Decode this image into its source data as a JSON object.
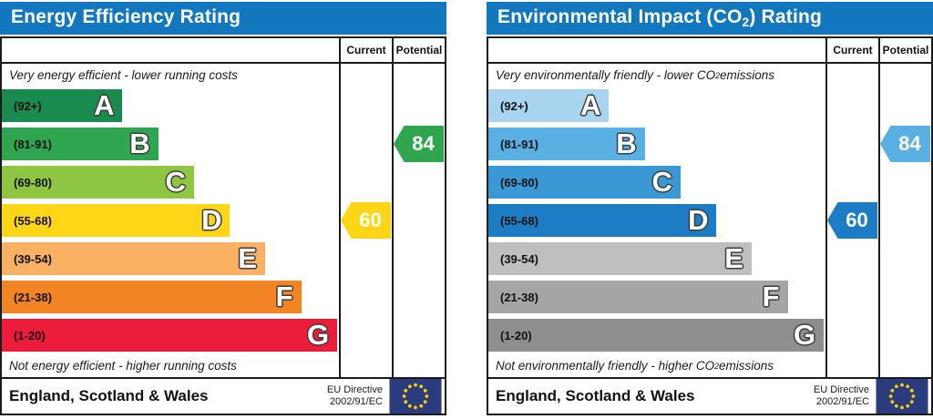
{
  "chart_data": [
    {
      "type": "bar",
      "title_parts": {
        "prefix": "Energy Efficiency Rating",
        "sub": "",
        "suffix": ""
      },
      "header_color": "#1277bd",
      "columns": {
        "current": "Current",
        "potential": "Potential"
      },
      "top_caption_parts": {
        "prefix": "Very energy efficient - lower running costs",
        "sub": "",
        "suffix": ""
      },
      "bottom_caption_parts": {
        "prefix": "Not energy efficient - higher running costs",
        "sub": "",
        "suffix": ""
      },
      "bands": [
        {
          "letter": "A",
          "range": "(92+)",
          "color": "#1b8a4e",
          "width_pct": 35.8
        },
        {
          "letter": "B",
          "range": "(81-91)",
          "color": "#2ea54e",
          "width_pct": 46.4
        },
        {
          "letter": "C",
          "range": "(69-80)",
          "color": "#8ec641",
          "width_pct": 57.0
        },
        {
          "letter": "D",
          "range": "(55-68)",
          "color": "#fed616",
          "width_pct": 67.7
        },
        {
          "letter": "E",
          "range": "(39-54)",
          "color": "#fab164",
          "width_pct": 78.1
        },
        {
          "letter": "F",
          "range": "(21-38)",
          "color": "#f38423",
          "width_pct": 88.8
        },
        {
          "letter": "G",
          "range": "(1-20)",
          "color": "#ec1c3b",
          "width_pct": 99.5
        }
      ],
      "current": {
        "value": 60,
        "band": "D",
        "band_index": 3,
        "color": "#fed616"
      },
      "potential": {
        "value": 84,
        "band": "B",
        "band_index": 1,
        "color": "#2ea54e"
      },
      "footer": {
        "region": "England, Scotland & Wales",
        "directive_line1": "EU Directive",
        "directive_line2": "2002/91/EC"
      }
    },
    {
      "type": "bar",
      "title_parts": {
        "prefix": "Environmental Impact (CO",
        "sub": "2",
        "suffix": ") Rating"
      },
      "header_color": "#1277bd",
      "columns": {
        "current": "Current",
        "potential": "Potential"
      },
      "top_caption_parts": {
        "prefix": "Very environmentally friendly - lower CO",
        "sub": "2",
        "suffix": " emissions"
      },
      "bottom_caption_parts": {
        "prefix": "Not environmentally friendly - higher CO",
        "sub": "2",
        "suffix": " emissions"
      },
      "bands": [
        {
          "letter": "A",
          "range": "(92+)",
          "color": "#a8d4ef",
          "width_pct": 35.8
        },
        {
          "letter": "B",
          "range": "(81-91)",
          "color": "#58b0e3",
          "width_pct": 46.4
        },
        {
          "letter": "C",
          "range": "(69-80)",
          "color": "#3a98d4",
          "width_pct": 57.0
        },
        {
          "letter": "D",
          "range": "(55-68)",
          "color": "#1c7cc4",
          "width_pct": 67.7
        },
        {
          "letter": "E",
          "range": "(39-54)",
          "color": "#bfbfbf",
          "width_pct": 78.1
        },
        {
          "letter": "F",
          "range": "(21-38)",
          "color": "#a5a5a5",
          "width_pct": 88.8
        },
        {
          "letter": "G",
          "range": "(1-20)",
          "color": "#8e8e8e",
          "width_pct": 99.5
        }
      ],
      "current": {
        "value": 60,
        "band": "D",
        "band_index": 3,
        "color": "#1c7cc4"
      },
      "potential": {
        "value": 84,
        "band": "B",
        "band_index": 1,
        "color": "#58b0e3"
      },
      "footer": {
        "region": "England, Scotland & Wales",
        "directive_line1": "EU Directive",
        "directive_line2": "2002/91/EC"
      }
    }
  ],
  "icons": {
    "eu_flag": {
      "background": "#2a3b7e",
      "star_color": "#ffcc00"
    }
  }
}
